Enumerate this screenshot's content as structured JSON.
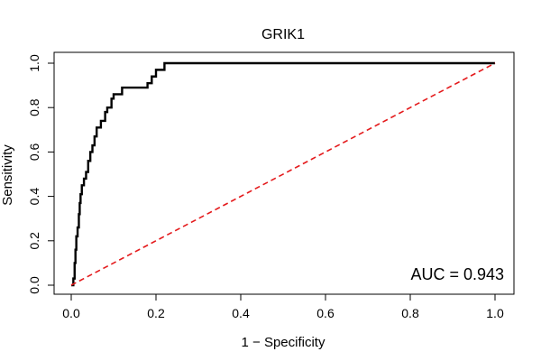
{
  "chart_data": {
    "type": "line",
    "title": "GRIK1",
    "xlabel": "1 − Specificity",
    "ylabel": "Sensitivity",
    "xlim": [
      0,
      1
    ],
    "ylim": [
      0,
      1
    ],
    "x_ticks": [
      "0.0",
      "0.2",
      "0.4",
      "0.6",
      "0.8",
      "1.0"
    ],
    "y_ticks": [
      "0.0",
      "0.2",
      "0.4",
      "0.6",
      "0.8",
      "1.0"
    ],
    "annotation": "AUC = 0.943",
    "grid": false,
    "series": [
      {
        "color": "#000000",
        "style": "solid",
        "points": [
          [
            0.0,
            0.0
          ],
          [
            0.005,
            0.0
          ],
          [
            0.005,
            0.03
          ],
          [
            0.008,
            0.03
          ],
          [
            0.008,
            0.1
          ],
          [
            0.01,
            0.1
          ],
          [
            0.01,
            0.16
          ],
          [
            0.012,
            0.16
          ],
          [
            0.012,
            0.22
          ],
          [
            0.015,
            0.22
          ],
          [
            0.015,
            0.26
          ],
          [
            0.018,
            0.26
          ],
          [
            0.018,
            0.32
          ],
          [
            0.02,
            0.32
          ],
          [
            0.02,
            0.37
          ],
          [
            0.022,
            0.37
          ],
          [
            0.022,
            0.41
          ],
          [
            0.025,
            0.41
          ],
          [
            0.025,
            0.45
          ],
          [
            0.03,
            0.45
          ],
          [
            0.03,
            0.48
          ],
          [
            0.035,
            0.48
          ],
          [
            0.035,
            0.51
          ],
          [
            0.04,
            0.51
          ],
          [
            0.04,
            0.56
          ],
          [
            0.045,
            0.56
          ],
          [
            0.045,
            0.6
          ],
          [
            0.05,
            0.6
          ],
          [
            0.05,
            0.63
          ],
          [
            0.055,
            0.63
          ],
          [
            0.055,
            0.67
          ],
          [
            0.06,
            0.67
          ],
          [
            0.06,
            0.71
          ],
          [
            0.07,
            0.71
          ],
          [
            0.07,
            0.74
          ],
          [
            0.08,
            0.74
          ],
          [
            0.08,
            0.78
          ],
          [
            0.085,
            0.78
          ],
          [
            0.085,
            0.8
          ],
          [
            0.095,
            0.8
          ],
          [
            0.095,
            0.84
          ],
          [
            0.1,
            0.84
          ],
          [
            0.1,
            0.86
          ],
          [
            0.12,
            0.86
          ],
          [
            0.12,
            0.89
          ],
          [
            0.18,
            0.89
          ],
          [
            0.18,
            0.91
          ],
          [
            0.19,
            0.91
          ],
          [
            0.19,
            0.94
          ],
          [
            0.2,
            0.94
          ],
          [
            0.2,
            0.97
          ],
          [
            0.22,
            0.97
          ],
          [
            0.22,
            1.0
          ],
          [
            1.0,
            1.0
          ]
        ]
      },
      {
        "color": "#e41a1c",
        "style": "dashed",
        "points": [
          [
            0.0,
            0.0
          ],
          [
            1.0,
            1.0
          ]
        ]
      }
    ]
  }
}
